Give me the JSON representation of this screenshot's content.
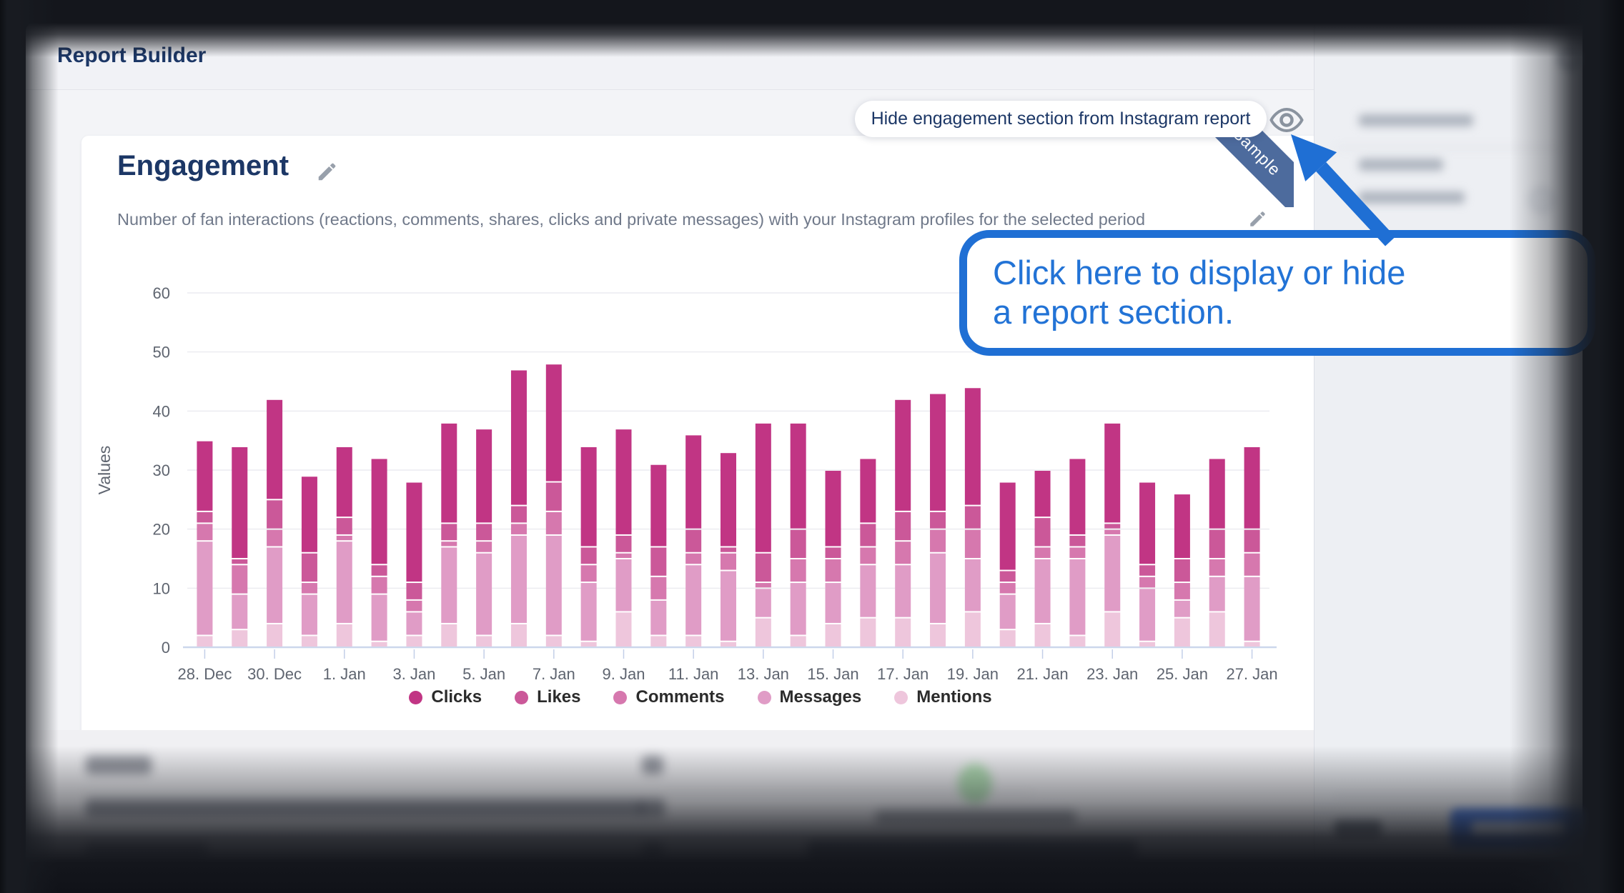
{
  "header": {
    "title": "Report Builder"
  },
  "section": {
    "title": "Engagement",
    "description": "Number of fan interactions (reactions, comments, shares, clicks and private messages) with your Instagram profiles for the selected period",
    "sample_ribbon": "Sample"
  },
  "tooltip": {
    "text": "Hide engagement section from Instagram report"
  },
  "callout": {
    "line1": "Click here to display or hide",
    "line2": "a report section."
  },
  "icons": {
    "section_edit": "pencil-icon",
    "description_edit": "pencil-icon",
    "visibility_toggle": "eye-icon",
    "sidebar_settings": "gear-icon"
  },
  "colors": {
    "title_navy": "#1c3766",
    "callout_blue": "#1f6fd4",
    "ribbon_blue": "#4d6b9d",
    "axis_line": "#ccd7ec",
    "gridline": "#ececf0",
    "save_button_blue": "#4b7ce2"
  },
  "chart_data": {
    "type": "bar",
    "stacked": true,
    "title": "",
    "xlabel": "",
    "ylabel": "Values",
    "ylim": [
      0,
      60
    ],
    "yticks": [
      0,
      10,
      20,
      30,
      40,
      50,
      60
    ],
    "grid": true,
    "legend_position": "bottom",
    "x": [
      "28. Dec",
      "29. Dec",
      "30. Dec",
      "31. Dec",
      "1. Jan",
      "2. Jan",
      "3. Jan",
      "4. Jan",
      "5. Jan",
      "6. Jan",
      "7. Jan",
      "8. Jan",
      "9. Jan",
      "10. Jan",
      "11. Jan",
      "12. Jan",
      "13. Jan",
      "14. Jan",
      "15. Jan",
      "16. Jan",
      "17. Jan",
      "18. Jan",
      "19. Jan",
      "20. Jan",
      "21. Jan",
      "22. Jan",
      "23. Jan",
      "24. Jan",
      "25. Jan",
      "26. Jan",
      "27. Jan"
    ],
    "x_label_every": 2,
    "stack_bottom_to_top": [
      "Mentions",
      "Messages",
      "Comments",
      "Likes",
      "Clicks"
    ],
    "series": [
      {
        "name": "Clicks",
        "color": "#c13584",
        "values": [
          12,
          19,
          17,
          13,
          12,
          18,
          17,
          17,
          16,
          23,
          20,
          17,
          18,
          14,
          16,
          16,
          22,
          18,
          13,
          11,
          19,
          20,
          20,
          15,
          8,
          13,
          17,
          14,
          11,
          12,
          14
        ]
      },
      {
        "name": "Likes",
        "color": "#cb5899",
        "values": [
          2,
          1,
          5,
          5,
          3,
          2,
          3,
          3,
          3,
          3,
          5,
          3,
          3,
          5,
          4,
          1,
          5,
          5,
          2,
          4,
          5,
          3,
          4,
          2,
          5,
          2,
          1,
          2,
          4,
          5,
          4
        ]
      },
      {
        "name": "Comments",
        "color": "#d678ae",
        "values": [
          3,
          5,
          3,
          2,
          1,
          3,
          2,
          1,
          2,
          2,
          4,
          3,
          1,
          4,
          2,
          3,
          1,
          4,
          4,
          3,
          4,
          4,
          5,
          2,
          2,
          2,
          1,
          2,
          3,
          3,
          4
        ]
      },
      {
        "name": "Messages",
        "color": "#e09cc6",
        "values": [
          16,
          6,
          13,
          7,
          14,
          8,
          4,
          13,
          14,
          15,
          17,
          10,
          9,
          6,
          12,
          12,
          5,
          9,
          7,
          9,
          9,
          12,
          9,
          6,
          11,
          13,
          13,
          9,
          3,
          6,
          11
        ]
      },
      {
        "name": "Mentions",
        "color": "#eec6dc",
        "values": [
          2,
          3,
          4,
          2,
          4,
          1,
          2,
          4,
          2,
          4,
          2,
          1,
          6,
          2,
          2,
          1,
          5,
          2,
          4,
          5,
          5,
          4,
          6,
          3,
          4,
          2,
          6,
          1,
          5,
          6,
          1
        ]
      }
    ]
  }
}
